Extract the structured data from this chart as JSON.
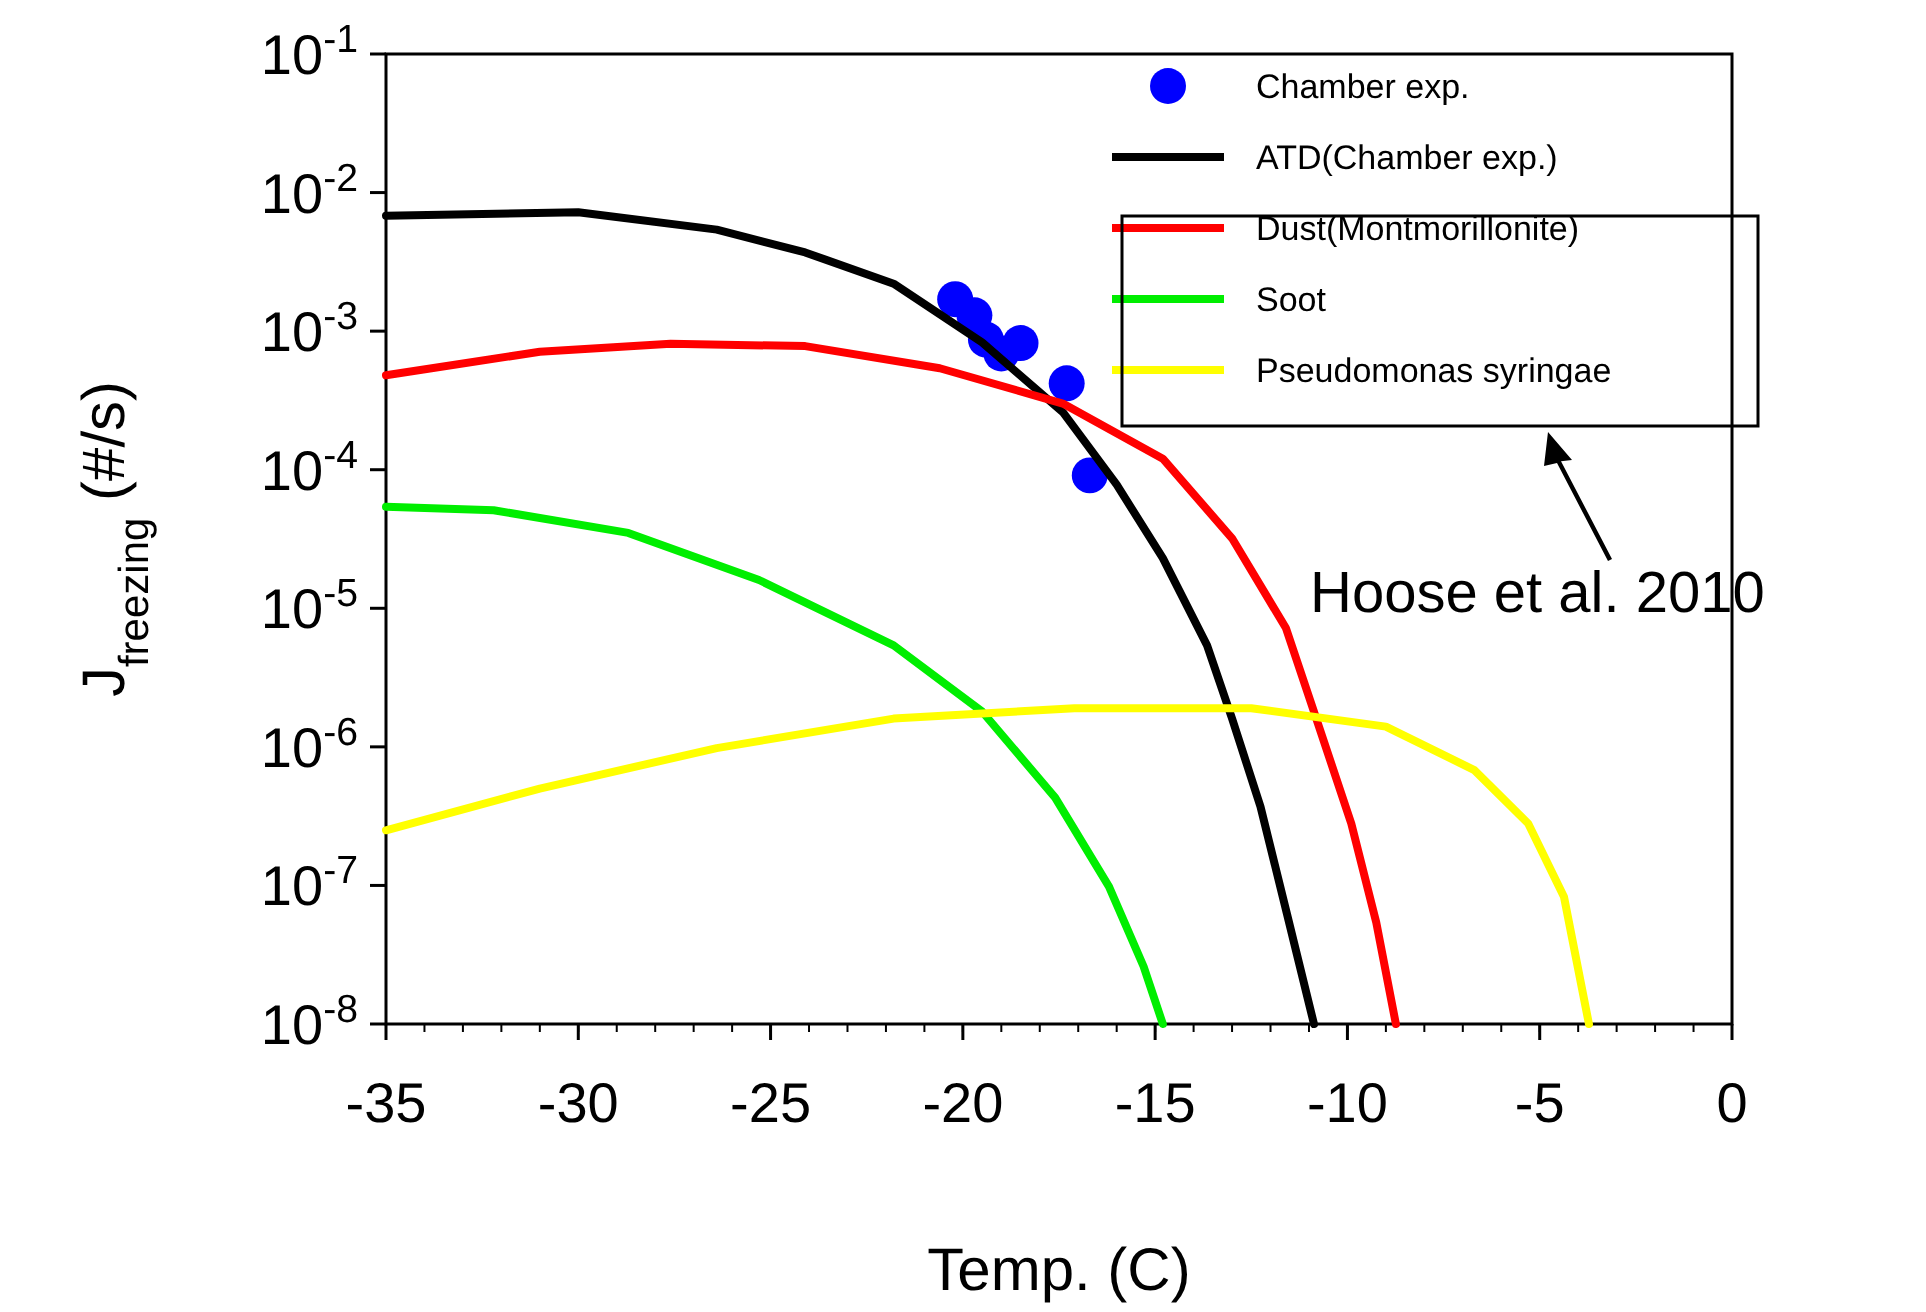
{
  "chart_data": {
    "type": "line",
    "xlabel": "Temp. (C)",
    "ylabel": "J$_{freezing}$ (#/s)",
    "log": "y",
    "xlim": [
      -35,
      0
    ],
    "ylim": [
      1e-08,
      0.1
    ],
    "xticks": [
      -35,
      -30,
      -25,
      -20,
      -15,
      -10,
      -5,
      0
    ],
    "yticks": [
      {
        "value": 1e-08,
        "label": "10$^{-8}$"
      },
      {
        "value": 1e-07,
        "label": "10$^{-7}$"
      },
      {
        "value": 1e-06,
        "label": "10$^{-6}$"
      },
      {
        "value": 1e-05,
        "label": "10$^{-5}$"
      },
      {
        "value": 0.0001,
        "label": "10$^{-4}$"
      },
      {
        "value": 0.001,
        "label": "10$^{-3}$"
      },
      {
        "value": 0.01,
        "label": "10$^{-2}$"
      },
      {
        "value": 0.1,
        "label": "10$^{-1}$"
      }
    ],
    "legend": "top right",
    "grid": false,
    "series": [
      {
        "name": "Chamber exp.",
        "type": "scatter",
        "marker": "circle",
        "color": "#0000ff",
        "x": [
          -20.2,
          -19.7,
          -19.4,
          -19.0,
          -18.5,
          -17.3,
          -16.7
        ],
        "values": [
          0.0017,
          0.0013,
          0.00087,
          0.00069,
          0.00082,
          0.00042,
          9.1e-05
        ]
      },
      {
        "name": "ATD(Chamber exp.)",
        "color": "#000000",
        "x": [
          -35,
          -30,
          -26.4,
          -24.1,
          -21.8,
          -19.5,
          -17.4,
          -16,
          -14.8,
          -13.65,
          -13,
          -12.26,
          -11.57,
          -10.87
        ],
        "values": [
          0.0068,
          0.0072,
          0.0054,
          0.0037,
          0.0022,
          0.00083,
          0.00026,
          7.8e-05,
          2.3e-05,
          5.4e-06,
          1.6e-06,
          3.7e-07,
          6.2e-08,
          1e-08
        ]
      },
      {
        "name": "Dust(Montmorillonite)",
        "color": "#ff0000",
        "x": [
          -35,
          -31,
          -27.6,
          -24.1,
          -20.6,
          -17.4,
          -14.8,
          -13,
          -11.6,
          -10.9,
          -9.9,
          -9.25,
          -8.74
        ],
        "values": [
          0.00048,
          0.00071,
          0.00081,
          0.00078,
          0.00054,
          0.0003,
          0.00012,
          3.2e-05,
          7.2e-06,
          1.9e-06,
          2.8e-07,
          5.4e-08,
          1e-08
        ]
      },
      {
        "name": "Soot",
        "color": "#00ee00",
        "x": [
          -35,
          -32.2,
          -28.7,
          -25.3,
          -21.8,
          -19.5,
          -17.6,
          -16.2,
          -15.3,
          -14.8
        ],
        "values": [
          5.4e-05,
          5.1e-05,
          3.5e-05,
          1.6e-05,
          5.4e-06,
          1.8e-06,
          4.3e-07,
          9.8e-08,
          2.6e-08,
          1e-08
        ]
      },
      {
        "name": "Pseudomonas syringae",
        "color": "#ffff00",
        "x": [
          -35,
          -31,
          -26.4,
          -21.8,
          -17.1,
          -12.5,
          -9,
          -6.7,
          -5.3,
          -4.37,
          -3.72
        ],
        "values": [
          2.5e-07,
          5e-07,
          9.8e-07,
          1.6e-06,
          1.9e-06,
          1.9e-06,
          1.4e-06,
          6.8e-07,
          2.8e-07,
          8.3e-08,
          1e-08
        ]
      }
    ],
    "annotations": [
      "Hoose et al. 2010"
    ]
  }
}
